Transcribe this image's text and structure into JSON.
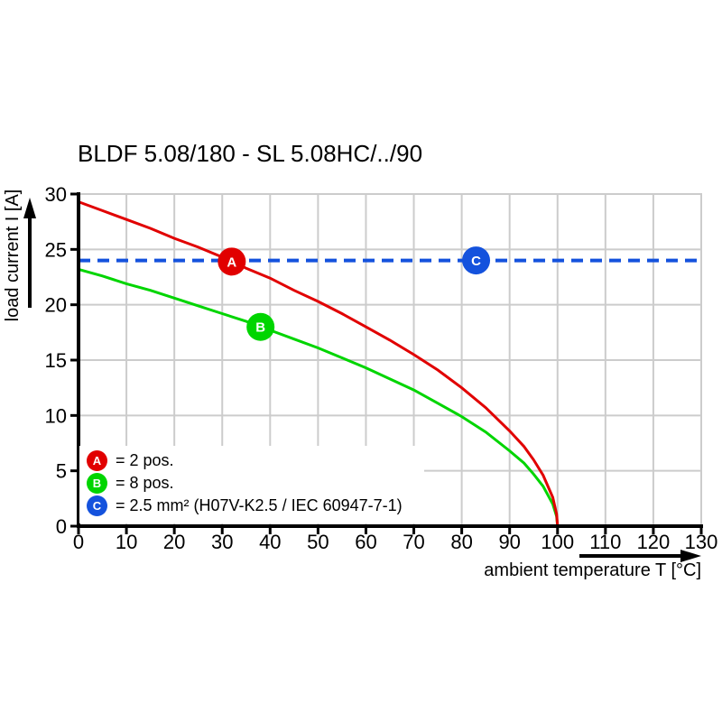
{
  "title": "BLDF 5.08/180 - SL 5.08HC/../90",
  "chart_data": {
    "type": "line",
    "title": "BLDF 5.08/180 - SL 5.08HC/../90",
    "xlabel": "ambient temperature T [°C]",
    "ylabel": "load current I [A]",
    "xlim": [
      0,
      130
    ],
    "ylim": [
      0,
      30
    ],
    "x_ticks": [
      0,
      10,
      20,
      30,
      40,
      50,
      60,
      70,
      80,
      90,
      100,
      110,
      120,
      130
    ],
    "y_ticks": [
      0,
      5,
      10,
      15,
      20,
      25,
      30
    ],
    "grid": true,
    "grid_color": "#cccccc",
    "axis_color": "#000000",
    "series": [
      {
        "name": "A",
        "legend_label": "= 2 pos.",
        "color": "#e10000",
        "dashed": false,
        "points": [
          [
            0,
            29.3
          ],
          [
            5,
            28.5
          ],
          [
            10,
            27.7
          ],
          [
            15,
            26.9
          ],
          [
            20,
            26.0
          ],
          [
            25,
            25.2
          ],
          [
            30,
            24.3
          ],
          [
            35,
            23.3
          ],
          [
            40,
            22.4
          ],
          [
            45,
            21.3
          ],
          [
            50,
            20.3
          ],
          [
            55,
            19.2
          ],
          [
            60,
            18.0
          ],
          [
            65,
            16.8
          ],
          [
            70,
            15.5
          ],
          [
            75,
            14.1
          ],
          [
            80,
            12.5
          ],
          [
            85,
            10.7
          ],
          [
            90,
            8.6
          ],
          [
            93,
            7.2
          ],
          [
            95,
            6.0
          ],
          [
            97,
            4.6
          ],
          [
            99,
            2.6
          ],
          [
            99.8,
            1.1
          ],
          [
            100,
            0
          ]
        ],
        "marker": {
          "letter": "A",
          "t": 32,
          "i": 23.9
        }
      },
      {
        "name": "B",
        "legend_label": "= 8 pos.",
        "color": "#00d500",
        "dashed": false,
        "points": [
          [
            0,
            23.2
          ],
          [
            5,
            22.6
          ],
          [
            10,
            21.9
          ],
          [
            15,
            21.3
          ],
          [
            20,
            20.6
          ],
          [
            25,
            19.9
          ],
          [
            30,
            19.2
          ],
          [
            35,
            18.5
          ],
          [
            40,
            17.7
          ],
          [
            45,
            16.9
          ],
          [
            50,
            16.1
          ],
          [
            55,
            15.2
          ],
          [
            60,
            14.3
          ],
          [
            65,
            13.3
          ],
          [
            70,
            12.3
          ],
          [
            75,
            11.1
          ],
          [
            80,
            9.9
          ],
          [
            85,
            8.5
          ],
          [
            90,
            6.8
          ],
          [
            93,
            5.7
          ],
          [
            95,
            4.7
          ],
          [
            97,
            3.6
          ],
          [
            99,
            2.0
          ],
          [
            99.8,
            0.9
          ],
          [
            100,
            0
          ]
        ],
        "marker": {
          "letter": "B",
          "t": 38,
          "i": 18.0
        }
      },
      {
        "name": "C",
        "legend_label": "= 2.5 mm² (H07V-K2.5 / IEC 60947-7-1)",
        "color": "#1452dd",
        "dashed": true,
        "points": [
          [
            0,
            24
          ],
          [
            130,
            24
          ]
        ],
        "marker": {
          "letter": "C",
          "t": 83,
          "i": 24
        }
      }
    ]
  }
}
